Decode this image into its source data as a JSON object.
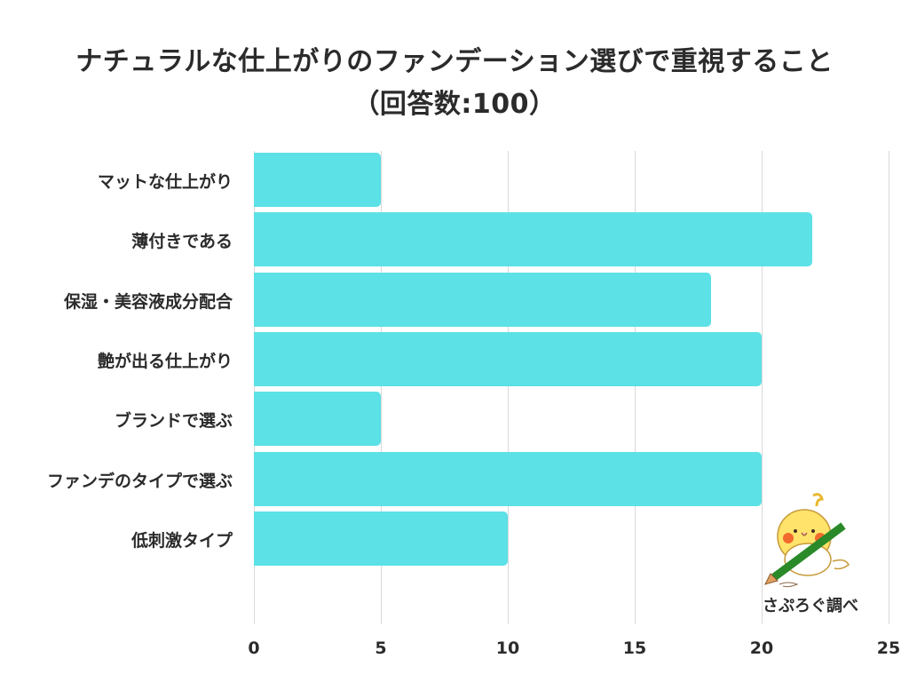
{
  "title": {
    "line1": "ナチュラルな仕上がりのファンデーション選びで重視すること",
    "line2": "（回答数:100）"
  },
  "credit": "さぷろぐ調べ",
  "colors": {
    "bar": "#5ce1e6",
    "grid": "#d8d8d8",
    "text": "#2b2b2b"
  },
  "chart_data": {
    "type": "bar",
    "orientation": "horizontal",
    "title": "ナチュラルな仕上がりのファンデーション選びで重視すること（回答数:100）",
    "categories": [
      "マットな仕上がり",
      "薄付きである",
      "保湿・美容液成分配合",
      "艶が出る仕上がり",
      "ブランドで選ぶ",
      "ファンデのタイプで選ぶ",
      "低刺激タイプ"
    ],
    "values": [
      5,
      22,
      18,
      20,
      5,
      20,
      10
    ],
    "xlabel": "",
    "ylabel": "",
    "xlim": [
      0,
      25
    ],
    "xticks": [
      "0",
      "5",
      "10",
      "15",
      "20",
      "25"
    ],
    "grid": true,
    "legend": null
  }
}
